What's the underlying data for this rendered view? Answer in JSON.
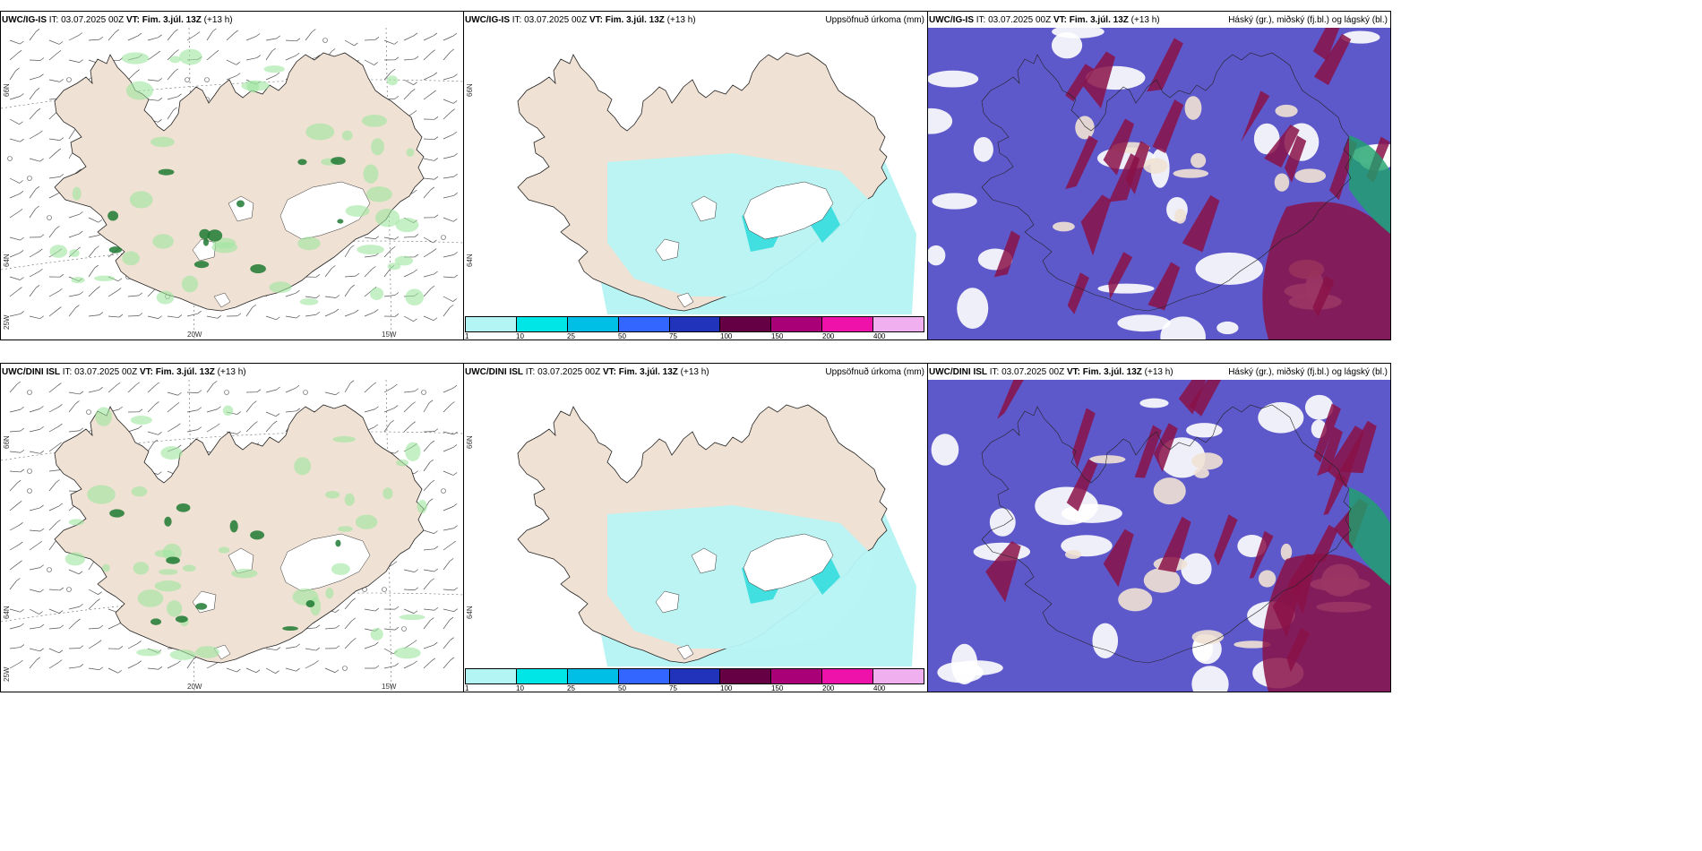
{
  "panels": [
    {
      "model": "UWC/IG-IS",
      "it_label": "IT: 03.07.2025 00Z",
      "vt_label": "VT: Fim. 3.júl. 13Z",
      "lead": "(+13 h)",
      "right_title": "",
      "lat_labels": [
        "66N",
        "64N",
        "25W"
      ],
      "lon_labels": [
        "20W",
        "15W"
      ]
    },
    {
      "model": "UWC/IG-IS",
      "it_label": "IT: 03.07.2025 00Z",
      "vt_label": "VT: Fim. 3.júl. 13Z",
      "lead": "(+13 h)",
      "right_title": "Uppsöfnuð úrkoma (mm)",
      "lat_labels": [
        "66N",
        "64N"
      ]
    },
    {
      "model": "UWC/IG-IS",
      "it_label": "IT: 03.07.2025 00Z",
      "vt_label": "VT: Fim. 3.júl. 13Z",
      "lead": "(+13 h)",
      "right_title": "Háský (gr.), miðský (fj.bl.) og lágský (bl.)"
    },
    {
      "model": "UWC/DINI ISL",
      "it_label": "IT: 03.07.2025 00Z",
      "vt_label": "VT: Fim. 3.júl. 13Z",
      "lead": "(+13 h)",
      "right_title": "",
      "lat_labels": [
        "66N",
        "64N",
        "25W"
      ],
      "lon_labels": [
        "20W",
        "15W"
      ]
    },
    {
      "model": "UWC/DINI ISL",
      "it_label": "IT: 03.07.2025 00Z",
      "vt_label": "VT: Fim. 3.júl. 13Z",
      "lead": "(+13 h)",
      "right_title": "Uppsöfnuð úrkoma (mm)",
      "lat_labels": [
        "66N",
        "64N"
      ]
    },
    {
      "model": "UWC/DINI ISL",
      "it_label": "IT: 03.07.2025 00Z",
      "vt_label": "VT: Fim. 3.júl. 13Z",
      "lead": "(+13 h)",
      "right_title": "Háský (gr.), miðský (fj.bl.) og lágský (bl.)"
    }
  ],
  "colorbar": {
    "labels": [
      "1",
      "10",
      "25",
      "50",
      "75",
      "100",
      "150",
      "200",
      "400"
    ],
    "colors": [
      "#b3f5f5",
      "#00e5e5",
      "#00bfe6",
      "#3366ff",
      "#2233bb",
      "#660044",
      "#aa0077",
      "#ee11aa",
      "#f0b0f0"
    ]
  },
  "colors": {
    "land": "#efe1d3",
    "precip_light": "#b8f4f4",
    "precip_mid": "#33dddd",
    "cloud_low": "#5550c8",
    "cloud_mid": "#8a1248",
    "cloud_high": "#1da36b",
    "ice": "#ffffff"
  }
}
